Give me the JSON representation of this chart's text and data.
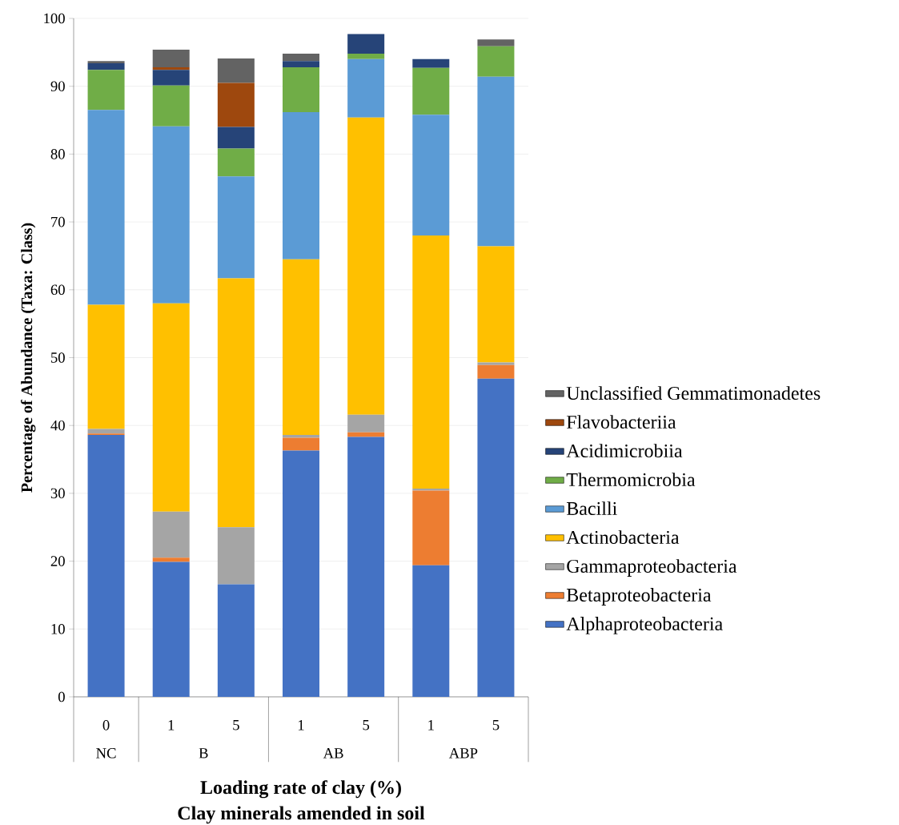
{
  "chart_data": {
    "type": "bar",
    "stacked": true,
    "ylabel": "Percentage of Abundance (Taxa: Class)",
    "xlabel": "Loading rate of clay (%)",
    "categories": [
      "0",
      "1",
      "5",
      "1",
      "5",
      "1",
      "5"
    ],
    "annotations": [
      "NC",
      "B",
      "AB",
      "ABP",
      "Clay minerals amended in soil"
    ],
    "ylim": [
      0,
      100
    ],
    "yticks": [
      0,
      10,
      20,
      30,
      40,
      50,
      60,
      70,
      80,
      90,
      100
    ],
    "grid": "y",
    "legend": "right",
    "marker": "square",
    "series": [
      {
        "name": "Alphaproteobacteria",
        "color": "#4472c4",
        "values": [
          38.6,
          19.9,
          16.6,
          36.3,
          38.3,
          19.4,
          46.9
        ]
      },
      {
        "name": "Betaproteobacteria",
        "color": "#ed7d31",
        "values": [
          0.2,
          0.6,
          0,
          1.9,
          0.7,
          11.0,
          2.0
        ]
      },
      {
        "name": "Gammaproteobacteria",
        "color": "#a5a5a5",
        "values": [
          0.7,
          6.8,
          8.4,
          0.4,
          2.6,
          0.3,
          0.4
        ]
      },
      {
        "name": "Actinobacteria",
        "color": "#ffc000",
        "values": [
          18.3,
          30.7,
          36.7,
          25.9,
          43.8,
          37.3,
          17.1
        ]
      },
      {
        "name": "Bacilli",
        "color": "#5b9bd5",
        "values": [
          28.7,
          26.1,
          15.0,
          21.7,
          8.6,
          17.8,
          25.0
        ]
      },
      {
        "name": "Thermomicrobia",
        "color": "#70ad47",
        "values": [
          5.9,
          6.0,
          4.1,
          6.6,
          0.8,
          6.9,
          4.5
        ]
      },
      {
        "name": "Acidimicrobiia",
        "color": "#264478",
        "values": [
          1.0,
          2.3,
          3.2,
          0.9,
          2.9,
          1.3,
          0
        ]
      },
      {
        "name": "Flavobacteriia",
        "color": "#9e480e",
        "values": [
          0,
          0.4,
          6.5,
          0,
          0,
          0,
          0
        ]
      },
      {
        "name": "Unclassified Gemmatimonadetes",
        "color": "#636363",
        "values": [
          0.3,
          2.6,
          3.6,
          1.1,
          0,
          0,
          1.0
        ]
      }
    ]
  }
}
